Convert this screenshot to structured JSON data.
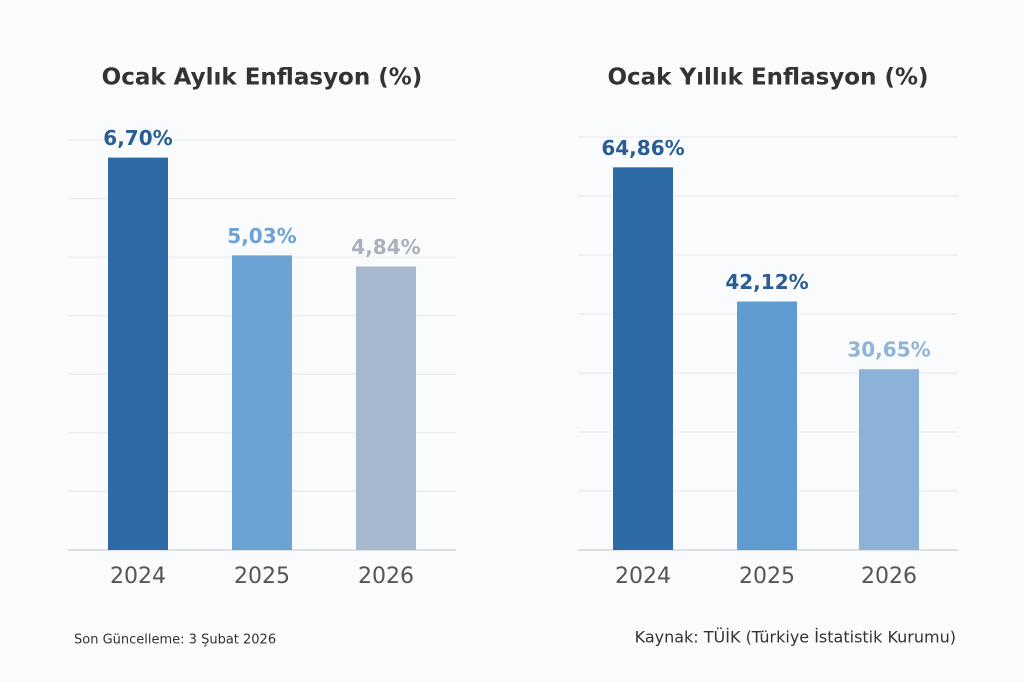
{
  "chart_data": [
    {
      "type": "bar",
      "title": "Ocak Aylık Enflasyon (%)",
      "categories": [
        "2024",
        "2025",
        "2026"
      ],
      "values": [
        6.7,
        5.03,
        4.84
      ],
      "value_labels": [
        "6,70%",
        "5,03%",
        "4,84%"
      ],
      "colors": [
        "#2e6aa6",
        "#6ba3d5",
        "#a7b9cd"
      ],
      "label_colors": [
        "#2a5d94",
        "#6ea2d6",
        "#a9b1bc"
      ],
      "ylim": [
        0,
        7
      ],
      "yticks": [
        0,
        1,
        2,
        3,
        4,
        5,
        6,
        7
      ],
      "grid": true
    },
    {
      "type": "bar",
      "title": "Ocak Yıllık Enflasyon (%)",
      "categories": [
        "2024",
        "2025",
        "2026"
      ],
      "values": [
        64.86,
        42.12,
        30.65
      ],
      "value_labels": [
        "64,86%",
        "42,12%",
        "30,65%"
      ],
      "colors": [
        "#2e6aa6",
        "#5e9cd1",
        "#8bb3da"
      ],
      "label_colors": [
        "#2a5d94",
        "#2a5d94",
        "#8fb3da"
      ],
      "ylim": [
        0,
        70
      ],
      "yticks": [
        0,
        10,
        20,
        30,
        40,
        50,
        60,
        70
      ],
      "grid": true
    }
  ],
  "footer": {
    "updated": "Son Güncelleme: 3 Şubat 2026",
    "source": "Kaynak: TÜİK (Türkiye İstatistik Kurumu)"
  }
}
